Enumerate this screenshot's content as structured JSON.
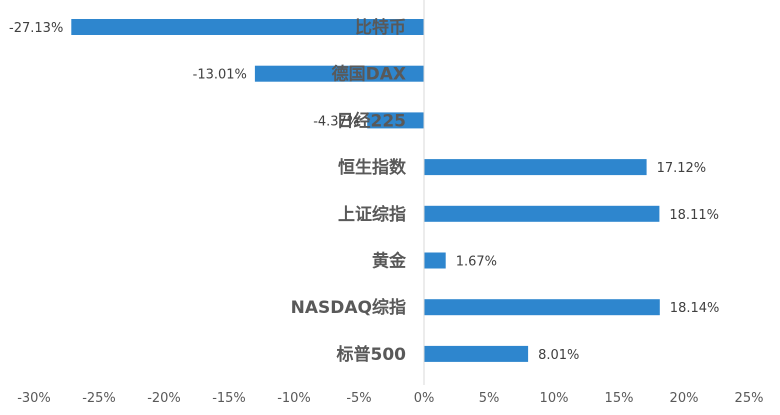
{
  "chart_data": {
    "type": "bar",
    "orientation": "horizontal",
    "categories": [
      "比特币",
      "德国DAX",
      "日经225",
      "恒生指数",
      "上证综指",
      "黄金",
      "NASDAQ综指",
      "标普500"
    ],
    "values": [
      -27.13,
      -13.01,
      -4.37,
      17.12,
      18.11,
      1.67,
      18.14,
      8.01
    ],
    "value_labels": [
      "-27.13%",
      "-13.01%",
      "-4.37%",
      "17.12%",
      "18.11%",
      "1.67%",
      "18.14%",
      "8.01%"
    ],
    "x_ticks": [
      -30,
      -25,
      -20,
      -15,
      -10,
      -5,
      0,
      5,
      10,
      15,
      20,
      25
    ],
    "x_tick_labels": [
      "-30%",
      "-25%",
      "-20%",
      "-15%",
      "-10%",
      "-5%",
      "0%",
      "5%",
      "10%",
      "15%",
      "20%",
      "25%"
    ],
    "xlim": [
      -30,
      25
    ],
    "title": "",
    "xlabel": "",
    "ylabel": "",
    "grid": false,
    "colors": {
      "bar": "#2E86CE",
      "axis": "#D9D9D9",
      "category_text": "#595959",
      "value_text": "#404040"
    }
  }
}
